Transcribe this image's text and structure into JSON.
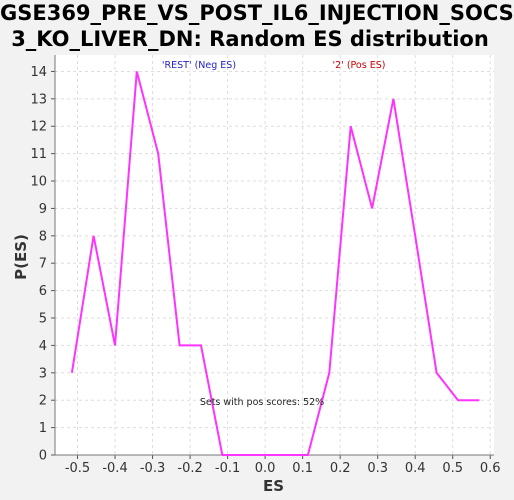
{
  "title_line1": "GSE369_PRE_VS_POST_IL6_INJECTION_SOCS",
  "title_line2": "3_KO_LIVER_DN: Random ES distribution",
  "colors": {
    "line": "#ff33ff",
    "neg_label": "#2222cc",
    "pos_label": "#cc0000",
    "grid": "#dddddd",
    "background": "#ffffff"
  },
  "chart_data": {
    "type": "line",
    "title": "GSE369_PRE_VS_POST_IL6_INJECTION_SOCS3_KO_LIVER_DN: Random ES distribution",
    "xlabel": "ES",
    "ylabel": "P(ES)",
    "xlim": [
      -0.56,
      0.61
    ],
    "ylim": [
      0,
      14.6
    ],
    "x_ticks": [
      "-0.5",
      "-0.4",
      "-0.3",
      "-0.2",
      "-0.1",
      "0.0",
      "0.1",
      "0.2",
      "0.3",
      "0.4",
      "0.5",
      "0.6"
    ],
    "y_ticks": [
      "0",
      "1",
      "2",
      "3",
      "4",
      "5",
      "6",
      "7",
      "8",
      "9",
      "10",
      "11",
      "12",
      "13",
      "14"
    ],
    "grid": true,
    "series": [
      {
        "x": [
          -0.515,
          -0.457,
          -0.4,
          -0.342,
          -0.285,
          -0.228,
          -0.171,
          -0.114,
          -0.057,
          0.0,
          0.057,
          0.114,
          0.171,
          0.228,
          0.285,
          0.342,
          0.4,
          0.457,
          0.514,
          0.571
        ],
        "values": [
          3,
          8,
          4,
          14,
          11,
          4,
          4,
          0,
          0,
          0,
          0,
          0,
          3,
          12,
          9,
          13,
          8,
          3,
          2,
          2
        ]
      }
    ],
    "annotations": {
      "neg_label": "'REST' (Neg ES)",
      "pos_label": "'2' (Pos ES)",
      "pos_scores": "Sets with pos scores: 52%"
    }
  }
}
